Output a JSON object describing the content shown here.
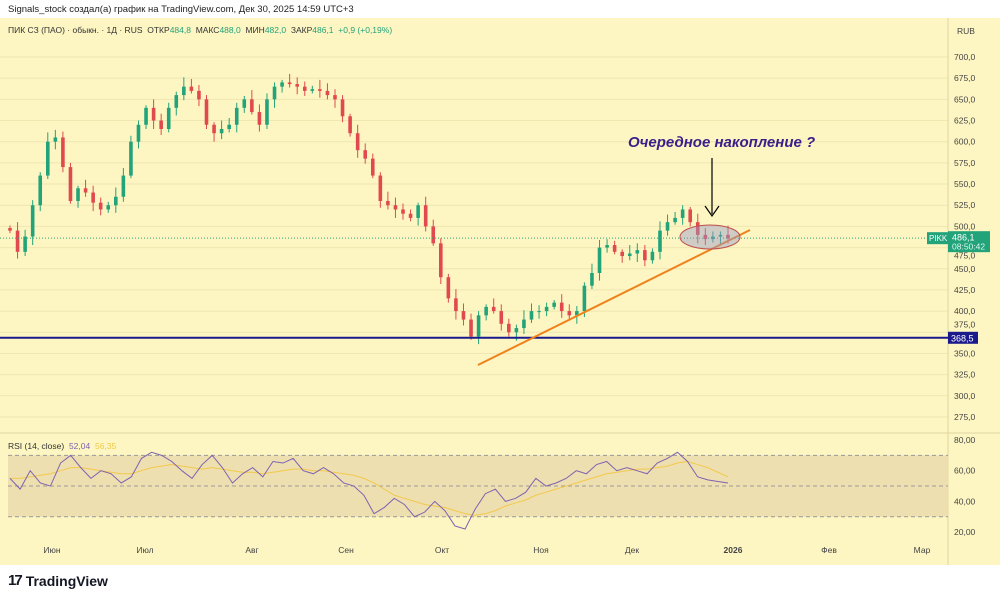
{
  "caption": "Signals_stock создал(а) график на TradingView.com, Дек 30, 2025 14:59 UTC+3",
  "legend": {
    "symbol": "ПИК СЗ (ПАО) · обыкн. · 1Д · RUS",
    "open_label": "ОТКР",
    "open": "484,8",
    "high_label": "МАКС",
    "high": "488,0",
    "low_label": "МИН",
    "low": "482,0",
    "close_label": "ЗАКР",
    "close": "486,1",
    "change": "+0,9 (+0,19%)"
  },
  "rsi_legend": {
    "name": "RSI (14, close)",
    "value": "52,04",
    "ma": "56,35"
  },
  "currency": "RUB",
  "ticker_label": "PIKK",
  "last_price": "486,1",
  "countdown": "08:50:42",
  "level_label": "368,5",
  "annotation": "Очередное накопление ?",
  "footer": "TradingView",
  "colors": {
    "bg": "#fdf6c3",
    "up": "#22a37a",
    "down": "#e0494d",
    "level": "#1a1a8c",
    "trend": "#f0821e",
    "rsi": "#7e62b0",
    "rsi_ma": "#f2c94c",
    "annotation": "#3a1f8a"
  },
  "chart_data": {
    "type": "candlestick",
    "price_axis": {
      "min": 262.5,
      "max": 712.5,
      "ticks": [
        "700,0",
        "675,0",
        "650,0",
        "625,0",
        "600,0",
        "575,0",
        "550,0",
        "525,0",
        "500,0",
        "475,0",
        "450,0",
        "425,0",
        "400,0",
        "375,0",
        "350,0",
        "325,0",
        "300,0",
        "275,0"
      ],
      "tick_values": [
        700,
        675,
        650,
        625,
        600,
        575,
        550,
        525,
        500,
        475,
        450,
        425,
        400,
        375,
        350,
        325,
        300,
        275
      ]
    },
    "rsi_axis": {
      "ticks": [
        "80,00",
        "60,00",
        "40,00",
        "20,00"
      ],
      "tick_values": [
        80,
        60,
        40,
        20
      ],
      "band": [
        30,
        70
      ]
    },
    "time_labels": [
      "Июн",
      "Июл",
      "Авг",
      "Сен",
      "Окт",
      "Ноя",
      "Дек",
      "2026",
      "Фев",
      "Мар"
    ],
    "closes": [
      495,
      470,
      488,
      525,
      560,
      600,
      605,
      570,
      530,
      545,
      540,
      528,
      520,
      525,
      535,
      560,
      600,
      620,
      640,
      625,
      615,
      640,
      655,
      665,
      660,
      650,
      620,
      610,
      615,
      620,
      640,
      650,
      635,
      620,
      650,
      665,
      670,
      668,
      665,
      660,
      662,
      660,
      655,
      650,
      630,
      610,
      590,
      580,
      560,
      530,
      525,
      520,
      515,
      510,
      525,
      500,
      480,
      440,
      415,
      400,
      390,
      370,
      395,
      405,
      400,
      385,
      375,
      380,
      390,
      400,
      400,
      405,
      410,
      400,
      395,
      400,
      430,
      445,
      475,
      478,
      470,
      465,
      468,
      472,
      460,
      470,
      495,
      505,
      510,
      520,
      505,
      490,
      485,
      488,
      490,
      486
    ],
    "rsi": [
      55,
      48,
      60,
      52,
      50,
      65,
      70,
      62,
      55,
      60,
      58,
      52,
      56,
      68,
      72,
      70,
      66,
      60,
      55,
      64,
      70,
      62,
      52,
      58,
      62,
      56,
      66,
      65,
      68,
      60,
      58,
      62,
      58,
      52,
      50,
      44,
      32,
      36,
      42,
      38,
      30,
      33,
      40,
      34,
      24,
      22,
      35,
      45,
      48,
      40,
      42,
      46,
      55,
      50,
      52,
      55,
      60,
      58,
      64,
      66,
      60,
      62,
      60,
      58,
      65,
      68,
      72,
      66,
      56,
      54,
      53,
      52
    ],
    "rsi_ma": [
      55,
      55,
      56,
      57,
      58,
      60,
      62,
      62,
      61,
      60,
      59,
      58,
      58,
      60,
      62,
      63,
      64,
      63,
      62,
      61,
      62,
      61,
      60,
      59,
      59,
      58,
      59,
      60,
      61,
      61,
      60,
      60,
      59,
      58,
      57,
      55,
      52,
      48,
      44,
      42,
      40,
      38,
      37,
      36,
      34,
      32,
      31,
      32,
      34,
      37,
      39,
      41,
      44,
      46,
      48,
      50,
      52,
      54,
      56,
      58,
      59,
      60,
      61,
      61,
      62,
      63,
      65,
      66,
      64,
      62,
      59,
      56
    ]
  }
}
